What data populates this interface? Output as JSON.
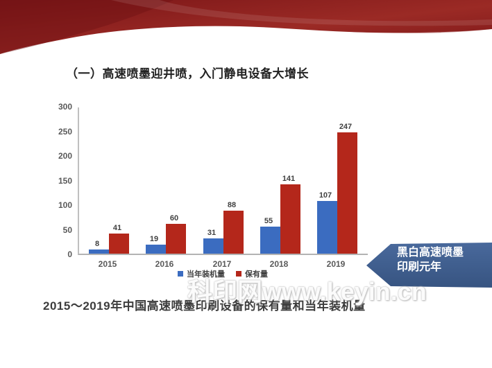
{
  "title": {
    "text": "（一）高速喷墨迎井喷，入门静电设备大增长"
  },
  "banner": {
    "color_main": "#9b2a25",
    "color_dark": "#7a1517",
    "color_deep": "#6e1114"
  },
  "chart_data": {
    "type": "bar",
    "title": "",
    "categories": [
      "2015",
      "2016",
      "2017",
      "2018",
      "2019"
    ],
    "series": [
      {
        "name": "当年装机量",
        "color": "#3b6cc0",
        "values": [
          8,
          19,
          31,
          55,
          107
        ]
      },
      {
        "name": "保有量",
        "color": "#b4271b",
        "values": [
          41,
          60,
          88,
          141,
          247
        ]
      }
    ],
    "xlabel": "",
    "ylabel": "",
    "ylim": [
      0,
      300
    ],
    "yticks": [
      0,
      50,
      100,
      150,
      200,
      250,
      300
    ],
    "grid": false,
    "legend_position": "bottom"
  },
  "callout": {
    "line1": "黑白高速喷墨",
    "line2": "印刷元年",
    "color_top": "#49699c",
    "color_bottom": "#375481"
  },
  "watermark": {
    "text": "科印网www.keyin.cn"
  },
  "caption": {
    "text": "2015～2019年中国高速喷墨印刷设备的保有量和当年装机量"
  }
}
